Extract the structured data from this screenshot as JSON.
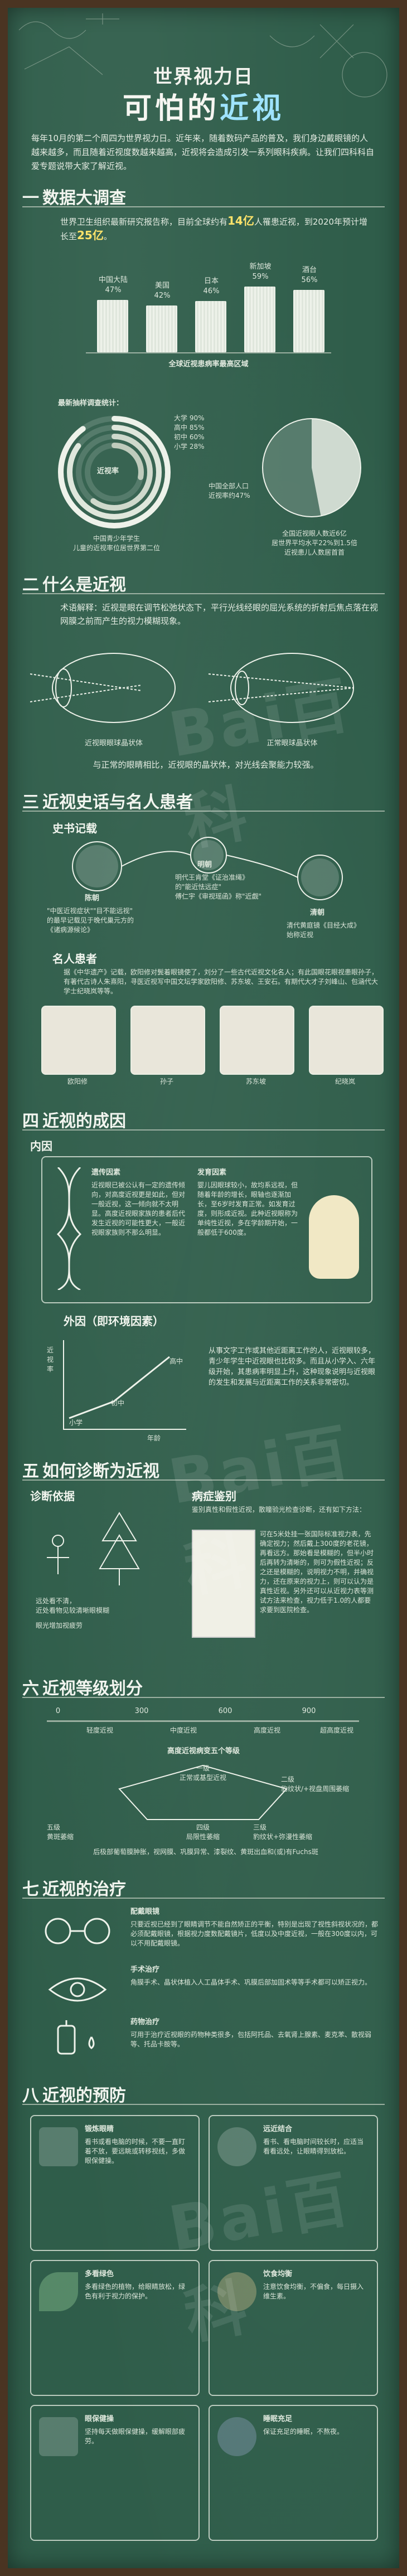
{
  "header": {
    "title_line1": "世界视力日",
    "title_prefix": "可怕的",
    "title_emph": "近视",
    "intro": "每年10月的第二个周四为世界视力日。近年来，随着数码产品的普及，我们身边戴眼镜的人越来越多，而且随着近视度数越来越高，近视将会造成引发一系列眼科疾病。让我们四科科自爱专题说带大家了解近视。"
  },
  "sec1": {
    "num": "一",
    "title": "数据大调查",
    "text_prefix": "世界卫生组织最新研究报告称，目前全球约有",
    "text_hl1": "14亿",
    "text_mid": "人罹患近视，到2020年预计增长至",
    "text_hl2": "25亿",
    "text_suffix": "。",
    "bars": [
      {
        "region": "中国大陆",
        "pct": "47%",
        "value": 47
      },
      {
        "region": "美国",
        "pct": "42%",
        "value": 42
      },
      {
        "region": "日本",
        "pct": "46%",
        "value": 46
      },
      {
        "region": "新加坡",
        "pct": "59%",
        "value": 59
      },
      {
        "region": "酒台",
        "pct": "56%",
        "value": 56
      }
    ],
    "bar_caption": "全球近视患病率最高区域",
    "ring_title": "最新抽样调查统计：",
    "ring_items": [
      "大学 90%",
      "高中 85%",
      "初中 60%",
      "小学 28%"
    ],
    "ring_center": "近视率",
    "ring_caption": "中国青少年学生\n儿童的近视率位居世界第二位",
    "pie_label": "中国全部人口\n近视率约47%",
    "pie_caption": "全国近视眼人数近6亿\n居世界平均水平22%到1.5倍\n近视患儿人数居首首"
  },
  "sec2": {
    "num": "二",
    "title": "什么是近视",
    "text": "术语解释：近视是眼在调节松弛状态下，平行光线经眼的屈光系统的折射后焦点落在视网膜之前而产生的视力模糊现象。",
    "eye1": "近视眼眼球晶状体",
    "eye2": "正常眼球晶状体",
    "note": "与正常的眼睛相比，近视眼的晶状体，对光线会聚能力较强。"
  },
  "sec3": {
    "num": "三",
    "title": "近视史话与名人患者",
    "sub1": "史书记载",
    "n1_name": "陈朝",
    "n1_text": "\"中医近视症状\"\"目不能远视\"\n的最早记载见于晚代巢元方的\n《诸病源候论》",
    "n2_name": "明朝",
    "n2_text": "明代王肯堂《证治准绳》\n的\"能近怯远症\"\n傅仁宇《审视瑶函》称\"近觑\"",
    "n3_name": "清朝",
    "n3_text": "清代黄庭镜《目经大成》\n始称近视",
    "sub2": "名人患者",
    "famous_text": "据《中华遗产》记载，欧阳修对鬓着眼镜使了，刘分了一些古代近视文化名人；有此国眼花眼视患眼孙子，有著代古诗人朱熹阳，寻医近视写中国文坛学家欧阳修、苏东坡、王安石。有期代大才子刘峰山、包涵代大学士纪晓岚等等。",
    "people": [
      "欧阳修",
      "孙子",
      "苏东坡",
      "纪晓岚"
    ]
  },
  "sec4": {
    "num": "四",
    "title": "近视的成因",
    "sub1": "内因",
    "gene_title": "遗传因素",
    "gene_text": "近视眼已被公认有一定的遗传倾向，对高度近视更是如此，但对一般近视，这一倾向就不太明显。高度近视眼家族的患者后代发生近视的可能性更大，一般近视眼家族则不那么明显。",
    "dev_title": "发育因素",
    "dev_text": "婴儿因眼球较小，故均系远视，但随着年龄的增长，眼轴也逐渐加长，至6岁时发育正常。如发育过度，则形成近视。此种近视眼称为单纯性近视，多在学龄期开始，一般都低于600度。",
    "sub2": "外因（即环境因素）",
    "chart_y": "近视率",
    "chart_x": "年龄",
    "chart_pts": [
      "小学",
      "初中",
      "高中"
    ],
    "env_text": "从事文字工作或其他近距离工作的人，近视眼较多，青少年学生中近视眼也比较多。而且从小学入、六年级开始，其患病率明显上升，这种现象说明与近视眼的发生和发展与近距离工作的关系非常密切。"
  },
  "sec5": {
    "num": "五",
    "title": "如何诊断为近视",
    "diag_title": "诊断依据",
    "d1": "远处看不清，\n近处看物见较清晰眼模糊",
    "d2": "眼光增加视疲劳",
    "screen_title": "病症鉴别",
    "screen_text": "鉴别真性和假性近视，散瞳验光检查诊断，还有如下方法：",
    "screen_steps": "可在5米处挂一张国际标准视力表，先确定视力；然后戴上300度的老花镜，再看远方。那始看是模糊的，但半小时后再转为清晰的，则可为假性近视；反之还是模糊的，说明视力不明，并确视力，还在原来的视力上，则可以认为是真性近视。另外还可以从近视力表等测试方法来检查，视力低于1.0的人都要求要到医院检查。"
  },
  "sec6": {
    "num": "六",
    "title": "近视等级划分",
    "scale": [
      "0",
      "300",
      "600",
      "900"
    ],
    "levels": [
      "轻度近视",
      "中度近视",
      "高度近视",
      "超高度近视"
    ],
    "note": "高度近视病变五个等级",
    "l1": "一级\n正常或基型近视",
    "l2": "二级\n豹纹状/+视盘周围萎缩",
    "l3": "三级\n豹纹状+弥漫性萎缩",
    "l4": "四级\n局限性萎缩",
    "l5": "五级\n黄斑萎缩",
    "grade_text": "后极部葡萄膜肿胀，视网膜、巩膜异常、漆裂纹、黄斑出血和(或)有Fuchs斑"
  },
  "sec7": {
    "num": "七",
    "title": "近视的治疗",
    "t1_title": "配戴眼镜",
    "t1_text": "只要近视已经到了眼睛调节不能自然矫正的平衡，特别是出现了视性斜视状况的，都必须配戴眼镜，根据视力度数配戴镜片，低度以及中度近视，一般在300度以内，可以不用配戴眼镜。",
    "t2_title": "手术治疗",
    "t2_text": "角膜手术、晶状体植入人工晶体手术、巩膜后部加固术等等手术都可以矫正视力。",
    "t3_title": "药物治疗",
    "t3_text": "可用于治疗近视眼的药物种类很多，包括阿托品、去氧肾上腺素、麦克苯、散视弱等、托品卡胺等。"
  },
  "sec8": {
    "num": "八",
    "title": "近视的预防",
    "p1_title": "锻炼眼睛",
    "p1_text": "看书或看电脑的时候，不要一直盯着不放，要远眺或转移视线，多做眼保健操。",
    "p2_title": "远近结合",
    "p2_text": "看书、看电脑时间较长时，应适当看看远处，让眼睛得到放松。",
    "p3_title": "多看绿色",
    "p3_text": "多看绿色的植物，给眼睛放松，绿色有利于视力的保护。",
    "p4_title": "饮食均衡",
    "p4_text": "注意饮食均衡，不偏食，每日摄入维生素。",
    "p5_title": "眼保健操",
    "p5_text": "坚持每天做眼保健操，缓解眼部疲劳。",
    "p6_title": "睡眠充足",
    "p6_text": "保证充足的睡眠，不熬夜。"
  },
  "watermark": "Bai百科"
}
